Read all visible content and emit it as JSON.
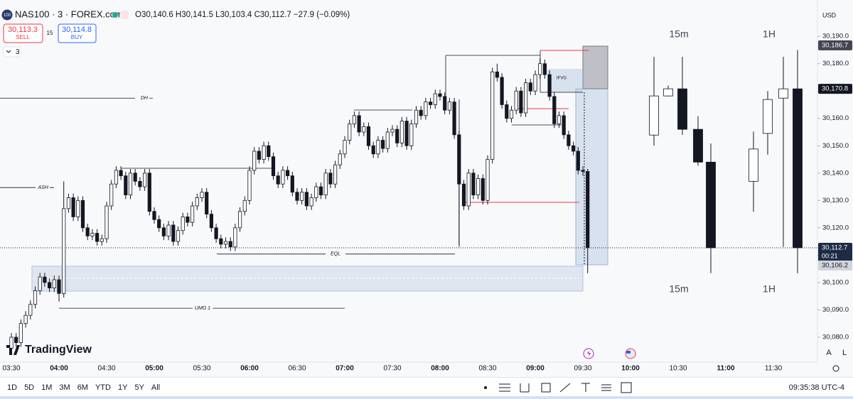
{
  "header": {
    "logo": "100",
    "symbol": "NAS100 · 3 · FOREX.com",
    "ohlc": "O30,140.6 H30,141.5 L30,103.4 C30,112.7 −27.9 (−0.09%)",
    "sell_price": "30,113.3",
    "sell": "SELL",
    "spread": "15",
    "buy_price": "30,114.8",
    "buy": "BUY",
    "indicator_count": "3",
    "currency": "USD"
  },
  "brand": "TradingView",
  "chart_data": [
    {
      "type": "candlestick",
      "categories": [
        "03:30",
        "03:33",
        "03:36",
        "03:39",
        "03:42",
        "03:45",
        "03:48",
        "03:51",
        "03:54",
        "03:57",
        "04:00",
        "04:03",
        "04:06",
        "04:09",
        "04:12",
        "04:15",
        "04:18",
        "04:21",
        "04:24",
        "04:27",
        "04:30",
        "04:33",
        "04:36",
        "04:39",
        "04:42",
        "04:45",
        "04:48",
        "04:51",
        "04:54",
        "04:57",
        "05:00",
        "05:03",
        "05:06",
        "05:09",
        "05:12",
        "05:15",
        "05:18",
        "05:21",
        "05:24",
        "05:27",
        "05:30",
        "05:33",
        "05:36",
        "05:39",
        "05:42",
        "05:45",
        "05:48",
        "05:51",
        "05:54",
        "05:57",
        "06:00",
        "06:03",
        "06:06",
        "06:09",
        "06:12",
        "06:15",
        "06:18",
        "06:21",
        "06:24",
        "06:27",
        "06:30",
        "06:33",
        "06:36",
        "06:39",
        "06:42",
        "06:45",
        "06:48",
        "06:51",
        "06:54",
        "06:57",
        "07:00",
        "07:03",
        "07:06",
        "07:09",
        "07:12",
        "07:15",
        "07:18",
        "07:21",
        "07:24",
        "07:27",
        "07:30",
        "07:33",
        "07:36",
        "07:39",
        "07:42",
        "07:45",
        "07:48",
        "07:51",
        "07:54",
        "07:57",
        "08:00",
        "08:03",
        "08:06",
        "08:09",
        "08:12",
        "08:15",
        "08:18",
        "08:21",
        "08:24",
        "08:27",
        "08:30",
        "08:33",
        "08:36",
        "08:39",
        "08:42",
        "08:45",
        "08:48",
        "08:51",
        "08:54",
        "08:57",
        "09:00",
        "09:03",
        "09:06",
        "09:09",
        "09:12",
        "09:15",
        "09:18",
        "09:21",
        "09:24",
        "09:27",
        "09:30",
        "09:33"
      ],
      "open": [
        30076,
        30080,
        30078,
        30085,
        30088,
        30092,
        30097,
        30102,
        30100,
        30098,
        30101,
        30096,
        30127,
        30131,
        30124,
        30130,
        30120,
        30117,
        30118,
        30115,
        30116,
        30128,
        30136,
        30141,
        30139,
        30132,
        30140,
        30137,
        30135,
        30140,
        30126,
        30123,
        30120,
        30117,
        30121,
        30115,
        30119,
        30124,
        30122,
        30128,
        30131,
        30133,
        30125,
        30120,
        30116,
        30114,
        30115,
        30113,
        30120,
        30126,
        30130,
        30141,
        30148,
        30145,
        30150,
        30146,
        30139,
        30136,
        30141,
        30139,
        30133,
        30130,
        30133,
        30128,
        30131,
        30135,
        30132,
        30140,
        30136,
        30143,
        30147,
        30152,
        30158,
        30161,
        30155,
        30157,
        30150,
        30147,
        30152,
        30149,
        30155,
        30156,
        30151,
        30159,
        30150,
        30158,
        30163,
        30161,
        30166,
        30165,
        30169,
        30168,
        30163,
        30166,
        30154,
        30136,
        30128,
        30140,
        30132,
        30138,
        30130,
        30145,
        30177,
        30175,
        30165,
        30160,
        30163,
        30170,
        30162,
        30173,
        30170,
        30176,
        30180,
        30176,
        30168,
        30158,
        30161,
        30154,
        30150,
        30148,
        30141,
        30140.6
      ],
      "high": [
        30081.5,
        30081.5,
        30086.5,
        30089.5,
        30093.5,
        30098.5,
        30103.5,
        30103.5,
        30101.5,
        30102.5,
        30102.5,
        30137,
        30132.5,
        30132.5,
        30131.5,
        30131.5,
        30121.5,
        30119.5,
        30119.5,
        30117.5,
        30129.5,
        30137.5,
        30142.5,
        30142.5,
        30140.5,
        30141.5,
        30141.5,
        30138.5,
        30141.5,
        30141.5,
        30127.5,
        30124.5,
        30121.5,
        30122.5,
        30122.5,
        30120.5,
        30125.5,
        30125.5,
        30129.5,
        30132.5,
        30134.5,
        30134.5,
        30126.5,
        30121.5,
        30117.5,
        30116.5,
        30116.5,
        30121.5,
        30127.5,
        30131.5,
        30142.5,
        30149.5,
        30149.5,
        30151.5,
        30151.5,
        30147.5,
        30140.5,
        30142.5,
        30142.5,
        30140.5,
        30134.5,
        30134.5,
        30134.5,
        30132.5,
        30136.5,
        30136.5,
        30141.5,
        30141.5,
        30144.5,
        30148.5,
        30153.5,
        30159.5,
        30162.5,
        30162.5,
        30158.5,
        30158.5,
        30151.5,
        30153.5,
        30153.5,
        30156.5,
        30157.5,
        30157.5,
        30160.5,
        30160.5,
        30159.5,
        30164.5,
        30164.5,
        30167.5,
        30167.5,
        30170.5,
        30170.5,
        30169.5,
        30167.5,
        30167.5,
        30155.5,
        30137.5,
        30141.5,
        30141.5,
        30139.5,
        30139.5,
        30146.5,
        30178.5,
        30180,
        30176.5,
        30166.5,
        30164.5,
        30171.5,
        30171.5,
        30174.5,
        30174.5,
        30177.5,
        30182,
        30181.5,
        30177.5,
        30169.5,
        30162.5,
        30162.5,
        30155.5,
        30151.5,
        30149.5,
        30142.5,
        30141.5
      ],
      "low": [
        30074.5,
        30076.5,
        30076.5,
        30083.5,
        30086.5,
        30090.5,
        30095.5,
        30098.5,
        30096.5,
        30096.5,
        30093,
        30094.5,
        30125.5,
        30122.5,
        30122.5,
        30118.5,
        30115.5,
        30115.5,
        30113.5,
        30113.5,
        30114.5,
        30126.5,
        30134.5,
        30137.5,
        30130.5,
        30130.5,
        30135.5,
        30133.5,
        30133.5,
        30124.5,
        30121.5,
        30118.5,
        30115.5,
        30115.5,
        30113.5,
        30113.5,
        30117.5,
        30120.5,
        30120.5,
        30126.5,
        30129.5,
        30123.5,
        30118.5,
        30114.5,
        30112.5,
        30112.5,
        30111.5,
        30111.5,
        30118.5,
        30124.5,
        30128.5,
        30139.5,
        30143.5,
        30143.5,
        30144.5,
        30137.5,
        30134.5,
        30134.5,
        30137.5,
        30131.5,
        30128.5,
        30128.5,
        30126.5,
        30126.5,
        30129.5,
        30130.5,
        30130.5,
        30134.5,
        30134.5,
        30141.5,
        30145.5,
        30150.5,
        30156.5,
        30153.5,
        30153.5,
        30148.5,
        30145.5,
        30145.5,
        30147.5,
        30147.5,
        30153.5,
        30149.5,
        30149.5,
        30148.5,
        30148.5,
        30156.5,
        30159.5,
        30159.5,
        30163.5,
        30163.5,
        30166.5,
        30161.5,
        30161.5,
        30152.5,
        30113.7,
        30126.5,
        30126.5,
        30130.5,
        30130.5,
        30128.5,
        30128.5,
        30143.5,
        30173.5,
        30163.5,
        30158.5,
        30158.5,
        30161.5,
        30160.5,
        30160.5,
        30168.5,
        30168.5,
        30174.5,
        30174.5,
        30166.5,
        30156.5,
        30156.5,
        30152.5,
        30148.5,
        30146.5,
        30139.5,
        30139,
        30103.4
      ],
      "close": [
        30080,
        30078,
        30085,
        30088,
        30092,
        30097,
        30102,
        30100,
        30098,
        30101,
        30096,
        30127,
        30131,
        30124,
        30130,
        30120,
        30117,
        30118,
        30115,
        30116,
        30128,
        30136,
        30141,
        30139,
        30132,
        30140,
        30137,
        30135,
        30140,
        30126,
        30123,
        30120,
        30117,
        30121,
        30115,
        30119,
        30124,
        30122,
        30128,
        30131,
        30133,
        30125,
        30120,
        30116,
        30114,
        30115,
        30113,
        30120,
        30126,
        30130,
        30141,
        30148,
        30145,
        30150,
        30146,
        30139,
        30136,
        30141,
        30139,
        30133,
        30130,
        30133,
        30128,
        30131,
        30135,
        30132,
        30140,
        30136,
        30143,
        30147,
        30152,
        30158,
        30161,
        30155,
        30157,
        30150,
        30147,
        30152,
        30149,
        30155,
        30156,
        30151,
        30159,
        30150,
        30158,
        30163,
        30161,
        30166,
        30165,
        30169,
        30168,
        30163,
        30166,
        30154,
        30136,
        30128,
        30140,
        30132,
        30138,
        30130,
        30145,
        30177,
        30175,
        30165,
        30160,
        30163,
        30170,
        30162,
        30173,
        30170,
        30176,
        30180,
        30176,
        30168,
        30158,
        30161,
        30154,
        30150,
        30148,
        30141,
        30140.6,
        30112.7
      ],
      "colors": {
        "up": "#ffffff",
        "down": "#131722",
        "wick": "#131722"
      },
      "ylim": [
        30072.2,
        30201.2
      ],
      "yticks": [
        {
          "value": 30080,
          "label": "30,080.0"
        },
        {
          "value": 30090,
          "label": "30,090.0"
        },
        {
          "value": 30100,
          "label": "30,100.0"
        },
        {
          "value": 30110,
          "label": "30,110.0"
        },
        {
          "value": 30120,
          "label": "30,120.0"
        },
        {
          "value": 30130,
          "label": "30,130.0"
        },
        {
          "value": 30140,
          "label": "30,140.0"
        },
        {
          "value": 30150,
          "label": "30,150.0"
        },
        {
          "value": 30160,
          "label": "30,160.0"
        },
        {
          "value": 30170,
          "label": "30,170.0"
        },
        {
          "value": 30180,
          "label": "30,180.0"
        },
        {
          "value": 30190,
          "label": "30,190.0"
        }
      ],
      "xticks": [
        "03:30",
        "04:00",
        "04:30",
        "05:00",
        "05:30",
        "06:00",
        "06:30",
        "07:00",
        "07:30",
        "08:00",
        "08:30",
        "09:00",
        "09:30",
        "10:00",
        "10:30",
        "11:00",
        "11:30"
      ],
      "levels": [
        {
          "label": "DH",
          "value": 30167.4
        },
        {
          "label": "ASH",
          "value": 30134.7
        },
        {
          "label": "EQL",
          "value": 30110.4
        },
        {
          "label": "UMG 1",
          "value": 30090.6
        }
      ],
      "annotations": [
        "IFVG"
      ],
      "price_labels": [
        {
          "value": 30186.7,
          "label": "30,186.7",
          "color": "#434651",
          "text_color": "#ffffff"
        },
        {
          "value": 30170.8,
          "label": "30,170.8",
          "color": "#131722",
          "text_color": "#ffffff"
        },
        {
          "value": 30112.7,
          "label": "30,112.7",
          "color": "#1e2b45",
          "text_color": "#ffffff",
          "countdown": "00:21"
        },
        {
          "value": 30106.2,
          "label": "30,106.2",
          "color": "#d1d4dc",
          "text_color": "#131722"
        }
      ]
    },
    {
      "type": "candlestick",
      "title": "15m",
      "open": [
        30153.9,
        30168.2,
        30170.8,
        30156,
        30144
      ],
      "high": [
        30182.5,
        30172,
        30182.5,
        30160.8,
        30150.8
      ],
      "low": [
        30150,
        30168,
        30154,
        30142.7,
        30103.4
      ],
      "close": [
        30168.2,
        30170.8,
        30156,
        30144,
        30112.7
      ],
      "colors": {
        "up": "#ffffff",
        "down": "#131722",
        "wick": "#131722"
      },
      "ylim": [
        30072.2,
        30201.2
      ]
    },
    {
      "type": "candlestick",
      "title": "1H",
      "open": [
        30137,
        30154.5,
        30167.4,
        30170.8
      ],
      "high": [
        30155.2,
        30170,
        30182.5,
        30185
      ],
      "low": [
        30125.9,
        30146.7,
        30113,
        30103.4
      ],
      "close": [
        30148.8,
        30166.9,
        30170.8,
        30112.7
      ],
      "colors": {
        "up": "#ffffff",
        "down": "#131722",
        "wick": "#131722"
      },
      "ylim": [
        30072.2,
        30201.2
      ]
    }
  ],
  "toolbar": {
    "timeframes": [
      "1D",
      "5D",
      "1M",
      "3M",
      "6M",
      "YTD",
      "1Y",
      "5Y",
      "All"
    ],
    "clock": "09:35:38 UTC-4",
    "scale_buttons": [
      "A",
      "L"
    ]
  }
}
